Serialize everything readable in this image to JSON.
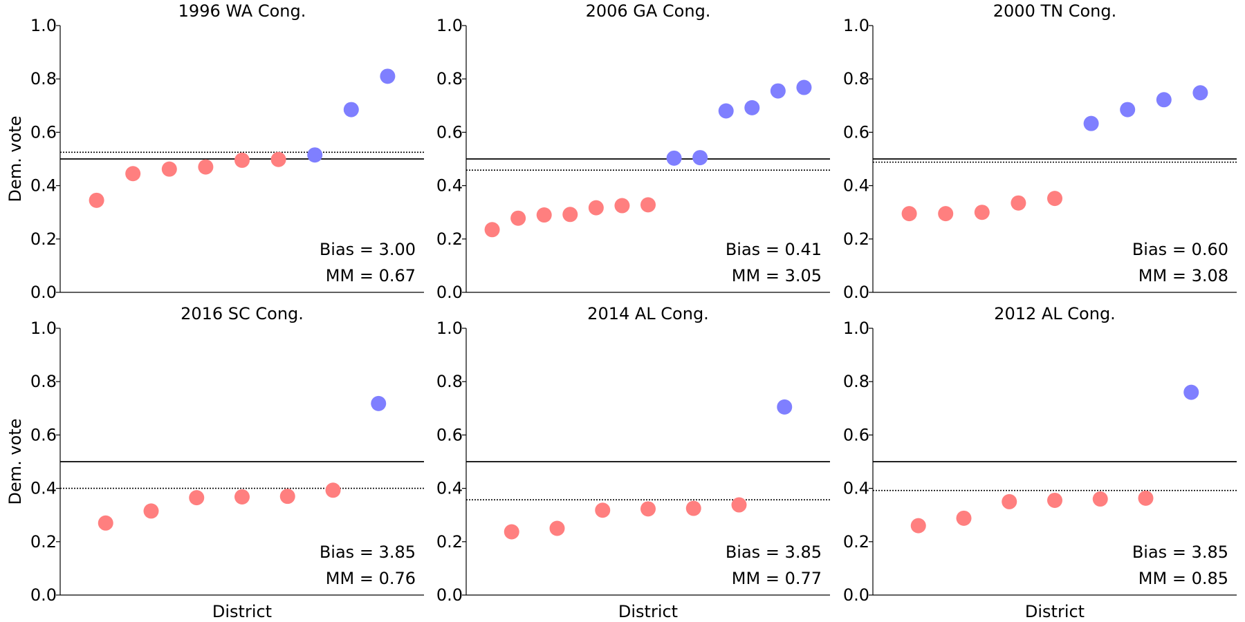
{
  "colors": {
    "dem": "#7f7fff",
    "rep": "#ff7f7f",
    "axis": "#000000"
  },
  "chart_data": [
    {
      "type": "scatter",
      "title": "1996 WA Cong.",
      "ylabel": "Dem. vote",
      "xlabel": "",
      "ylim": [
        0,
        1
      ],
      "yticks": [
        "0.0",
        "0.2",
        "0.4",
        "0.6",
        "0.8",
        "1.0"
      ],
      "values": [
        0.345,
        0.445,
        0.462,
        0.47,
        0.495,
        0.498,
        0.515,
        0.685,
        0.81
      ],
      "threshold": 0.5,
      "dotted_line": 0.525,
      "bias_label": "Bias = 3.00",
      "mm_label": "MM = 0.67"
    },
    {
      "type": "scatter",
      "title": "2006 GA Cong.",
      "ylabel": "",
      "xlabel": "",
      "ylim": [
        0,
        1
      ],
      "yticks": [
        "0.0",
        "0.2",
        "0.4",
        "0.6",
        "0.8",
        "1.0"
      ],
      "values": [
        0.235,
        0.278,
        0.29,
        0.292,
        0.317,
        0.325,
        0.328,
        0.503,
        0.505,
        0.68,
        0.692,
        0.755,
        0.768
      ],
      "threshold": 0.5,
      "dotted_line": 0.458,
      "bias_label": "Bias = 0.41",
      "mm_label": "MM = 3.05"
    },
    {
      "type": "scatter",
      "title": "2000 TN Cong.",
      "ylabel": "",
      "xlabel": "",
      "ylim": [
        0,
        1
      ],
      "yticks": [
        "0.0",
        "0.2",
        "0.4",
        "0.6",
        "0.8",
        "1.0"
      ],
      "values": [
        0.295,
        0.295,
        0.3,
        0.335,
        0.352,
        0.633,
        0.685,
        0.722,
        0.748
      ],
      "threshold": 0.5,
      "dotted_line": 0.488,
      "bias_label": "Bias = 0.60",
      "mm_label": "MM = 3.08"
    },
    {
      "type": "scatter",
      "title": "2016 SC Cong.",
      "ylabel": "Dem. vote",
      "xlabel": "District",
      "ylim": [
        0,
        1
      ],
      "yticks": [
        "0.0",
        "0.2",
        "0.4",
        "0.6",
        "0.8",
        "1.0"
      ],
      "values": [
        0.27,
        0.315,
        0.365,
        0.368,
        0.37,
        0.393,
        0.718
      ],
      "threshold": 0.5,
      "dotted_line": 0.4,
      "bias_label": "Bias = 3.85",
      "mm_label": "MM = 0.76"
    },
    {
      "type": "scatter",
      "title": "2014 AL Cong.",
      "ylabel": "",
      "xlabel": "District",
      "ylim": [
        0,
        1
      ],
      "yticks": [
        "0.0",
        "0.2",
        "0.4",
        "0.6",
        "0.8",
        "1.0"
      ],
      "values": [
        0.237,
        0.25,
        0.318,
        0.323,
        0.325,
        0.338,
        0.705
      ],
      "threshold": 0.5,
      "dotted_line": 0.357,
      "bias_label": "Bias = 3.85",
      "mm_label": "MM = 0.77"
    },
    {
      "type": "scatter",
      "title": "2012 AL Cong.",
      "ylabel": "",
      "xlabel": "District",
      "ylim": [
        0,
        1
      ],
      "yticks": [
        "0.0",
        "0.2",
        "0.4",
        "0.6",
        "0.8",
        "1.0"
      ],
      "values": [
        0.26,
        0.288,
        0.35,
        0.355,
        0.36,
        0.363,
        0.76
      ],
      "threshold": 0.5,
      "dotted_line": 0.392,
      "bias_label": "Bias = 3.85",
      "mm_label": "MM = 0.85"
    }
  ]
}
